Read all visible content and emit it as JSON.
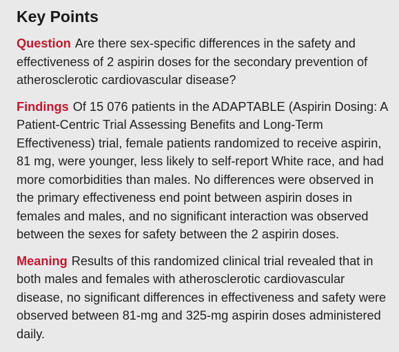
{
  "header": {
    "title": "Key Points"
  },
  "sections": [
    {
      "label": "Question",
      "text": "Are there sex-specific differences in the safety and effectiveness of 2 aspirin doses for the secondary prevention of atherosclerotic cardiovascular disease?"
    },
    {
      "label": "Findings",
      "text": "Of 15 076 patients in the ADAPTABLE (Aspirin Dosing: A Patient-Centric Trial Assessing Benefits and Long-Term Effectiveness) trial, female patients randomized to receive aspirin, 81 mg, were younger, less likely to self-report White race, and had more comorbidities than males. No differences were observed in the primary effectiveness end point between aspirin doses in females and males, and no significant interaction was observed between the sexes for safety between the 2 aspirin doses."
    },
    {
      "label": "Meaning",
      "text": "Results of this randomized clinical trial revealed that in both males and females with atherosclerotic cardiovascular disease, no significant differences in effectiveness and safety were observed between 81-mg and 325-mg aspirin doses administered daily."
    }
  ],
  "colors": {
    "label": "#c4172c",
    "background": "#e9e9ea"
  }
}
